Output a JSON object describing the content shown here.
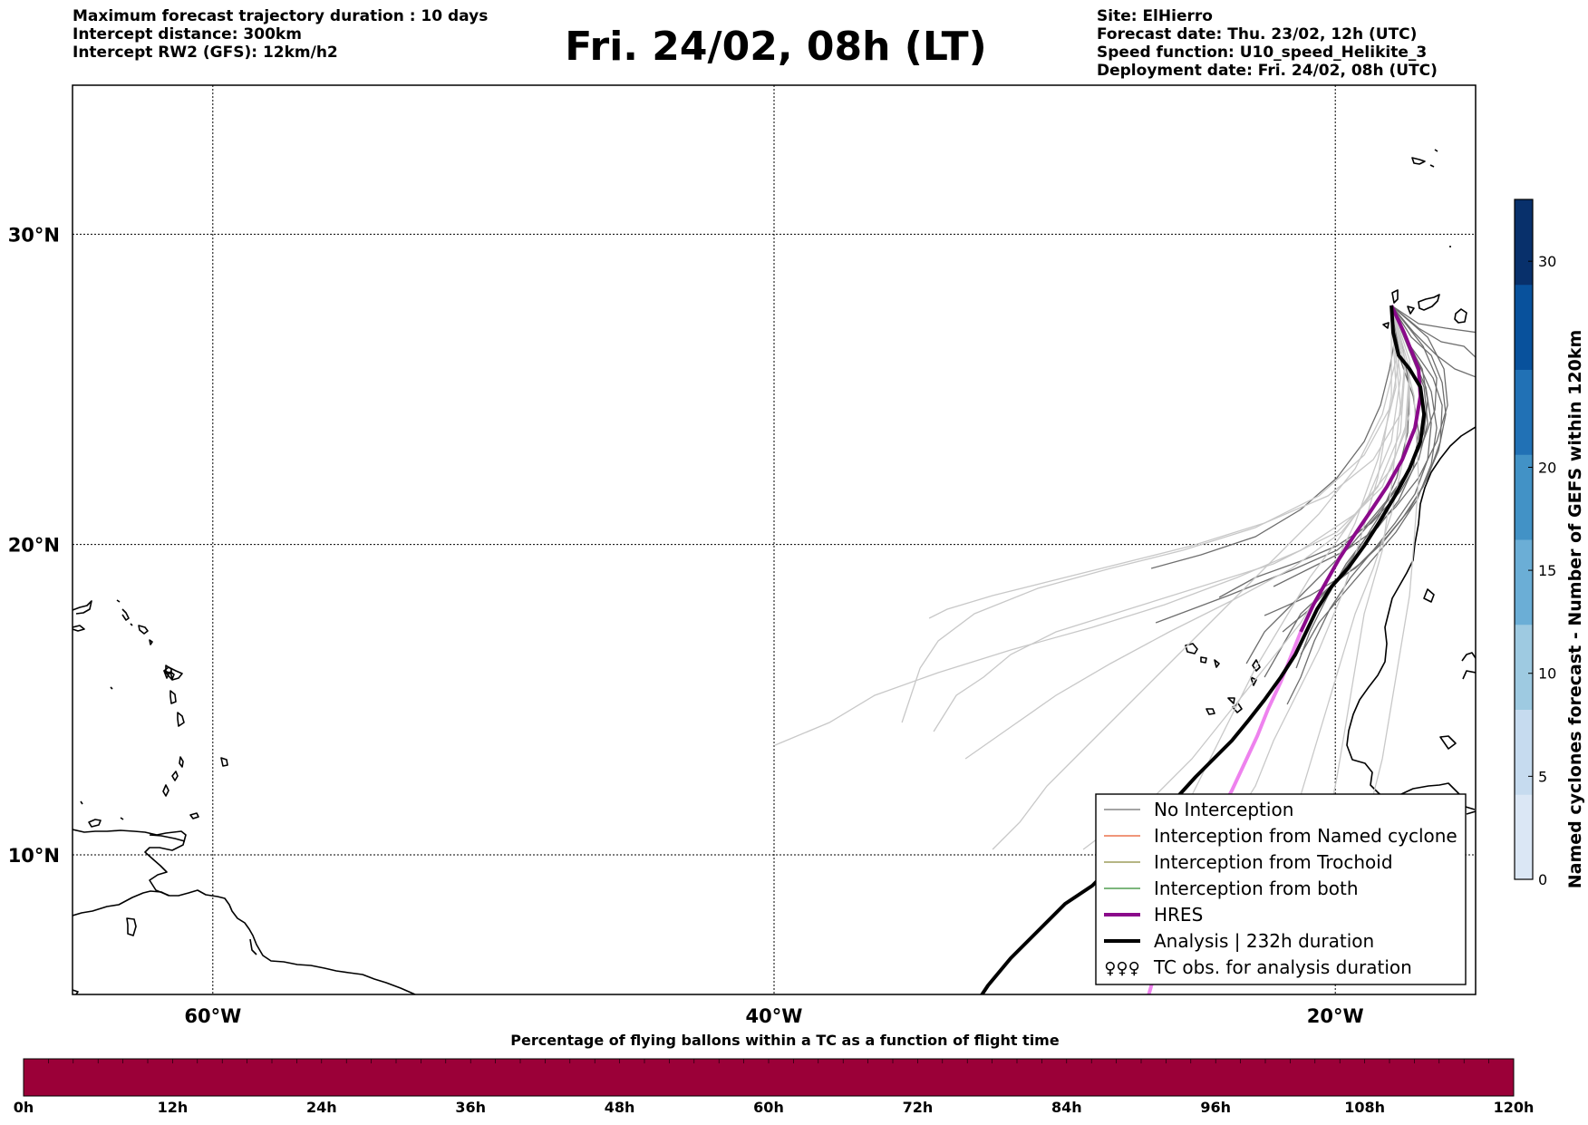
{
  "header": {
    "left_lines": [
      "Maximum forecast trajectory duration : 10 days",
      "Intercept distance: 300km",
      "Intercept RW2 (GFS):  12km/h2"
    ],
    "title": "Fri. 24/02, 08h (LT)",
    "right_lines": [
      "Site: ElHierro",
      "Forecast date: Thu. 23/02, 12h (UTC)",
      "Speed function: U10_speed_Helikite_3",
      "Deployment date: Fri. 24/02, 08h (UTC)"
    ]
  },
  "map": {
    "lon_range": [
      -65,
      -15
    ],
    "lat_range": [
      5.5,
      34.8
    ],
    "lat_labels": [
      {
        "value": 30,
        "text": "30°N"
      },
      {
        "value": 20,
        "text": "20°N"
      },
      {
        "value": 10,
        "text": "10°N"
      }
    ],
    "lon_labels": [
      {
        "value": -60,
        "text": "60°W"
      },
      {
        "value": -40,
        "text": "40°W"
      },
      {
        "value": -20,
        "text": "20°W"
      }
    ],
    "site": {
      "lon": -18.0,
      "lat": 27.7
    },
    "colors": {
      "coast": "#000000",
      "grid": "#000000",
      "no_interception_dark": "#6e6e6e",
      "no_interception_light": "#c8c8c8",
      "named_cyclone": "#e8572a",
      "trochoid": "#8b8b3a",
      "both": "#2e8b2e",
      "hres": "#8b0a8b",
      "hres_late": "#ee82ee",
      "analysis": "#000000"
    }
  },
  "legend": {
    "items": [
      {
        "label": "No Interception",
        "color": "#6e6e6e",
        "width": 1.3,
        "type": "line"
      },
      {
        "label": "Interception from Named cyclone",
        "color": "#e8572a",
        "width": 1.3,
        "type": "line"
      },
      {
        "label": "Interception from Trochoid",
        "color": "#8b8b3a",
        "width": 1.3,
        "type": "line"
      },
      {
        "label": "Interception from both",
        "color": "#2e8b2e",
        "width": 1.3,
        "type": "line"
      },
      {
        "label": "HRES",
        "color": "#8b0a8b",
        "width": 4,
        "type": "line"
      },
      {
        "label": "Analysis | 232h duration",
        "color": "#000000",
        "width": 4,
        "type": "line"
      },
      {
        "label": "TC obs. for analysis duration",
        "color": "#000000",
        "width": 0,
        "type": "symbol",
        "symbol": "♀♀♀"
      }
    ]
  },
  "colorbar_right": {
    "label": "Named cyclones forecast - Number of GEFS within 120km",
    "min": 0,
    "max": 33,
    "ticks": [
      0,
      5,
      10,
      15,
      20,
      30
    ],
    "colors": [
      "#dbe7f5",
      "#c6dbef",
      "#9ecae1",
      "#6baed6",
      "#4292c6",
      "#2171b5",
      "#08519c",
      "#08306b"
    ]
  },
  "bottom_bar": {
    "title": "Percentage of flying ballons within a TC as a function of flight time",
    "color": "#9b0038",
    "ticks": [
      "0h",
      "12h",
      "24h",
      "36h",
      "48h",
      "60h",
      "72h",
      "84h",
      "96h",
      "108h",
      "120h"
    ]
  }
}
